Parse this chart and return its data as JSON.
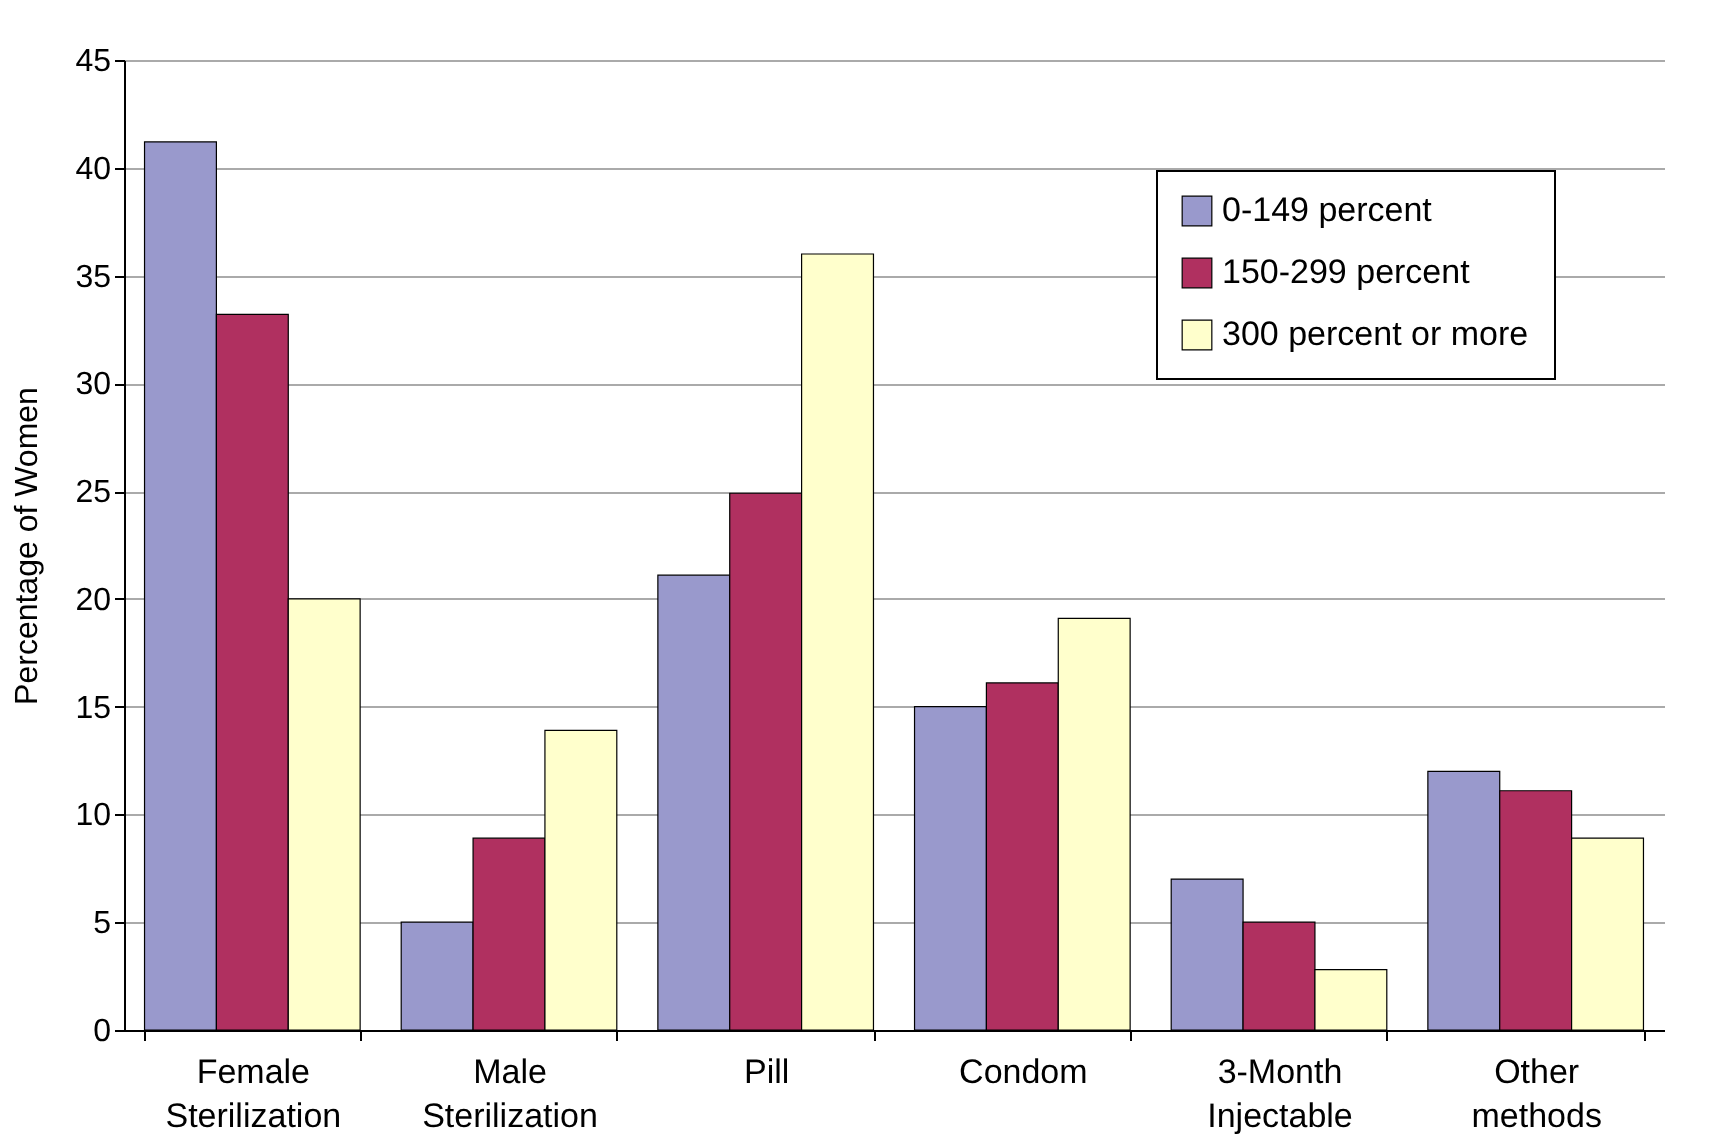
{
  "chart_data": {
    "type": "bar",
    "ylabel": "Percentage of Women",
    "categories": [
      "Female Sterilization",
      "Male Sterilization",
      "Pill",
      "Condom",
      "3-Month Injectable",
      "Other methods"
    ],
    "series": [
      {
        "name": "0-149 percent",
        "color": "#9999cc",
        "values": [
          41.2,
          5,
          21.1,
          15,
          7,
          12
        ]
      },
      {
        "name": "150-299 percent",
        "color": "#b03060",
        "values": [
          33.2,
          8.9,
          24.9,
          16.1,
          5,
          11.1
        ]
      },
      {
        "name": "300 percent or more",
        "color": "#ffffcc",
        "values": [
          20,
          13.9,
          36,
          19.1,
          2.8,
          8.9
        ]
      }
    ],
    "ylim": [
      0,
      45
    ],
    "yticks": [
      0,
      5,
      10,
      15,
      20,
      25,
      30,
      35,
      40,
      45
    ],
    "grid": "y",
    "legend": "top right"
  }
}
